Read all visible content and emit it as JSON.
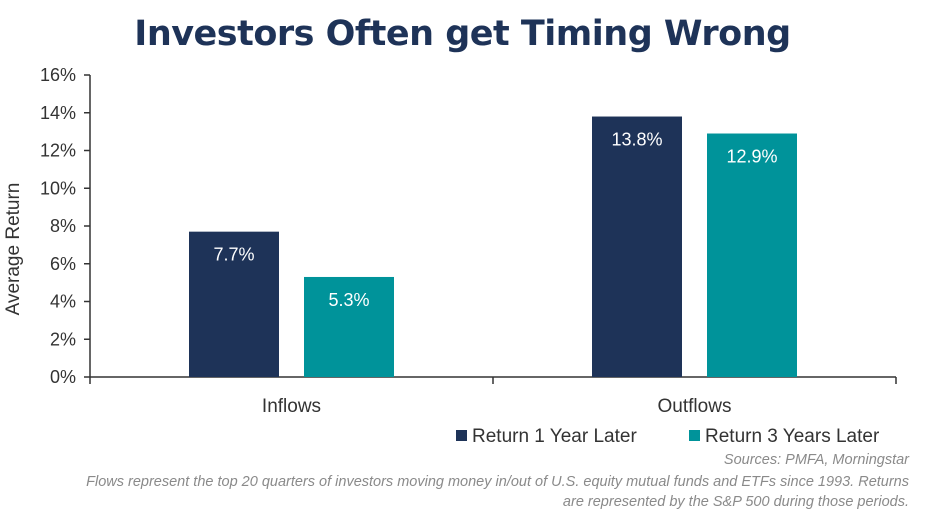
{
  "title": "Investors Often get Timing Wrong",
  "chart_data": {
    "type": "bar",
    "title": "Investors Often get Timing Wrong",
    "categories": [
      "Inflows",
      "Outflows"
    ],
    "series": [
      {
        "name": "Return 1 Year Later",
        "values": [
          7.7,
          13.8
        ],
        "labels": [
          "7.7%",
          "13.8%"
        ],
        "color": "#1e3358"
      },
      {
        "name": "Return 3 Years Later",
        "values": [
          5.3,
          12.9
        ],
        "labels": [
          "5.3%",
          "12.9%"
        ],
        "color": "#00939a"
      }
    ],
    "ylabel": "Average Return",
    "xlabel": "",
    "ylim": [
      0,
      16
    ],
    "yticks": [
      0,
      2,
      4,
      6,
      8,
      10,
      12,
      14,
      16
    ],
    "ytick_labels": [
      "0%",
      "2%",
      "4%",
      "6%",
      "8%",
      "10%",
      "12%",
      "14%",
      "16%"
    ],
    "grid": false,
    "legend": "bottom-right"
  },
  "notes": {
    "sources": "Sources: PMFA, Morningstar",
    "footnote_line1": "Flows represent the top 20 quarters of investors moving money in/out of U.S. equity mutual funds and ETFs since 1993. Returns",
    "footnote_line2": "are represented by the S&P 500 during those periods."
  }
}
